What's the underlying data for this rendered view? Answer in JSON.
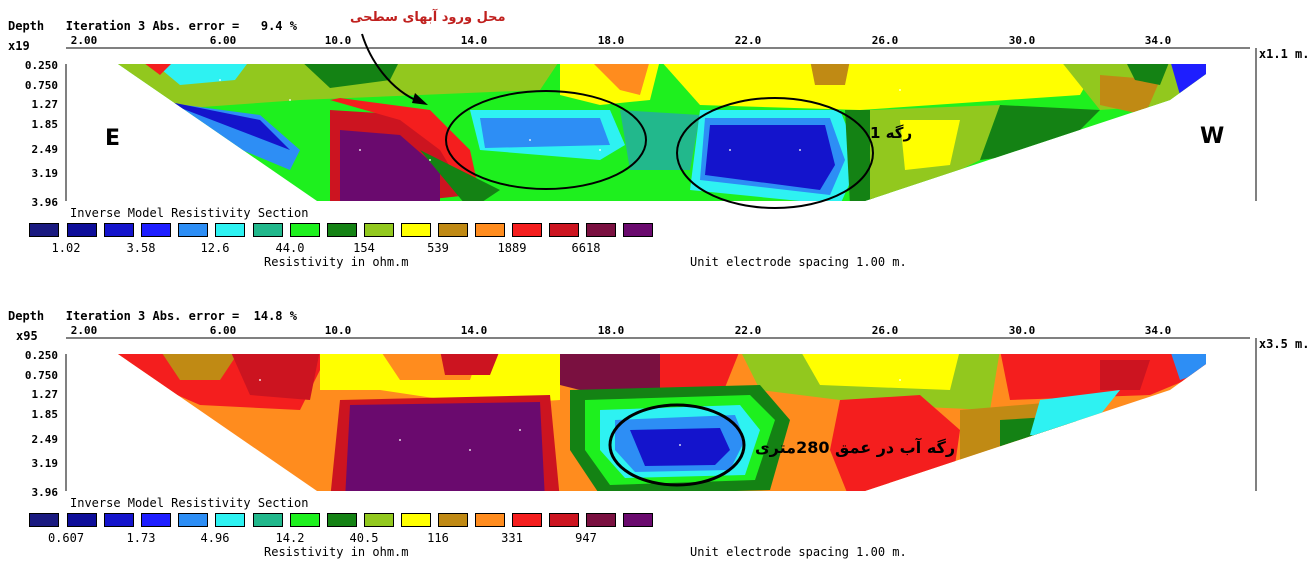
{
  "colors": {
    "scale": [
      "#1a1a80",
      "#0d0d99",
      "#1414cc",
      "#1e1eff",
      "#2d8ef5",
      "#2ef2f2",
      "#22b88c",
      "#1ef01e",
      "#148214",
      "#92c81e",
      "#ffff00",
      "#c08a14",
      "#ff8c1e",
      "#f41e1e",
      "#cc1420",
      "#7a1040",
      "#6a0a6e"
    ]
  },
  "top": {
    "header": "Depth   Iteration 3 Abs. error =   9.4 %",
    "scale_factor": "x19",
    "x_scale": "x1.1",
    "x_unit": "m.",
    "x_ticks": [
      "2.00",
      "6.00",
      "10.0",
      "14.0",
      "18.0",
      "22.0",
      "26.0",
      "30.0",
      "34.0"
    ],
    "depths": [
      "0.250",
      "0.750",
      "1.27",
      "1.85",
      "2.49",
      "3.19",
      "3.96"
    ],
    "legend_title": "Inverse Model Resistivity Section",
    "legend_values": [
      "1.02",
      "3.58",
      "12.6",
      "44.0",
      "154",
      "539",
      "1889",
      "6618"
    ],
    "legend_unit": "Resistivity in ohm.m",
    "spacing_note": "Unit electrode spacing 1.00 m.",
    "side_left": "E",
    "side_right": "W",
    "annotation_inflow": "محل ورود آبهای سطحی",
    "annotation_vein": "رگه 1"
  },
  "bottom": {
    "header": "Depth   Iteration 3 Abs. error =  14.8 %",
    "scale_factor": "x95",
    "x_scale": "x3.5",
    "x_unit": "m.",
    "x_ticks": [
      "2.00",
      "6.00",
      "10.0",
      "14.0",
      "18.0",
      "22.0",
      "26.0",
      "30.0",
      "34.0"
    ],
    "depths": [
      "0.250",
      "0.750",
      "1.27",
      "1.85",
      "2.49",
      "3.19",
      "3.96"
    ],
    "legend_title": "Inverse Model Resistivity Section",
    "legend_values": [
      "0.607",
      "1.73",
      "4.96",
      "14.2",
      "40.5",
      "116",
      "331",
      "947"
    ],
    "legend_unit": "Resistivity in ohm.m",
    "spacing_note": "Unit electrode spacing 1.00 m.",
    "annotation_vein": "رگه آب در عمق 280متری"
  }
}
